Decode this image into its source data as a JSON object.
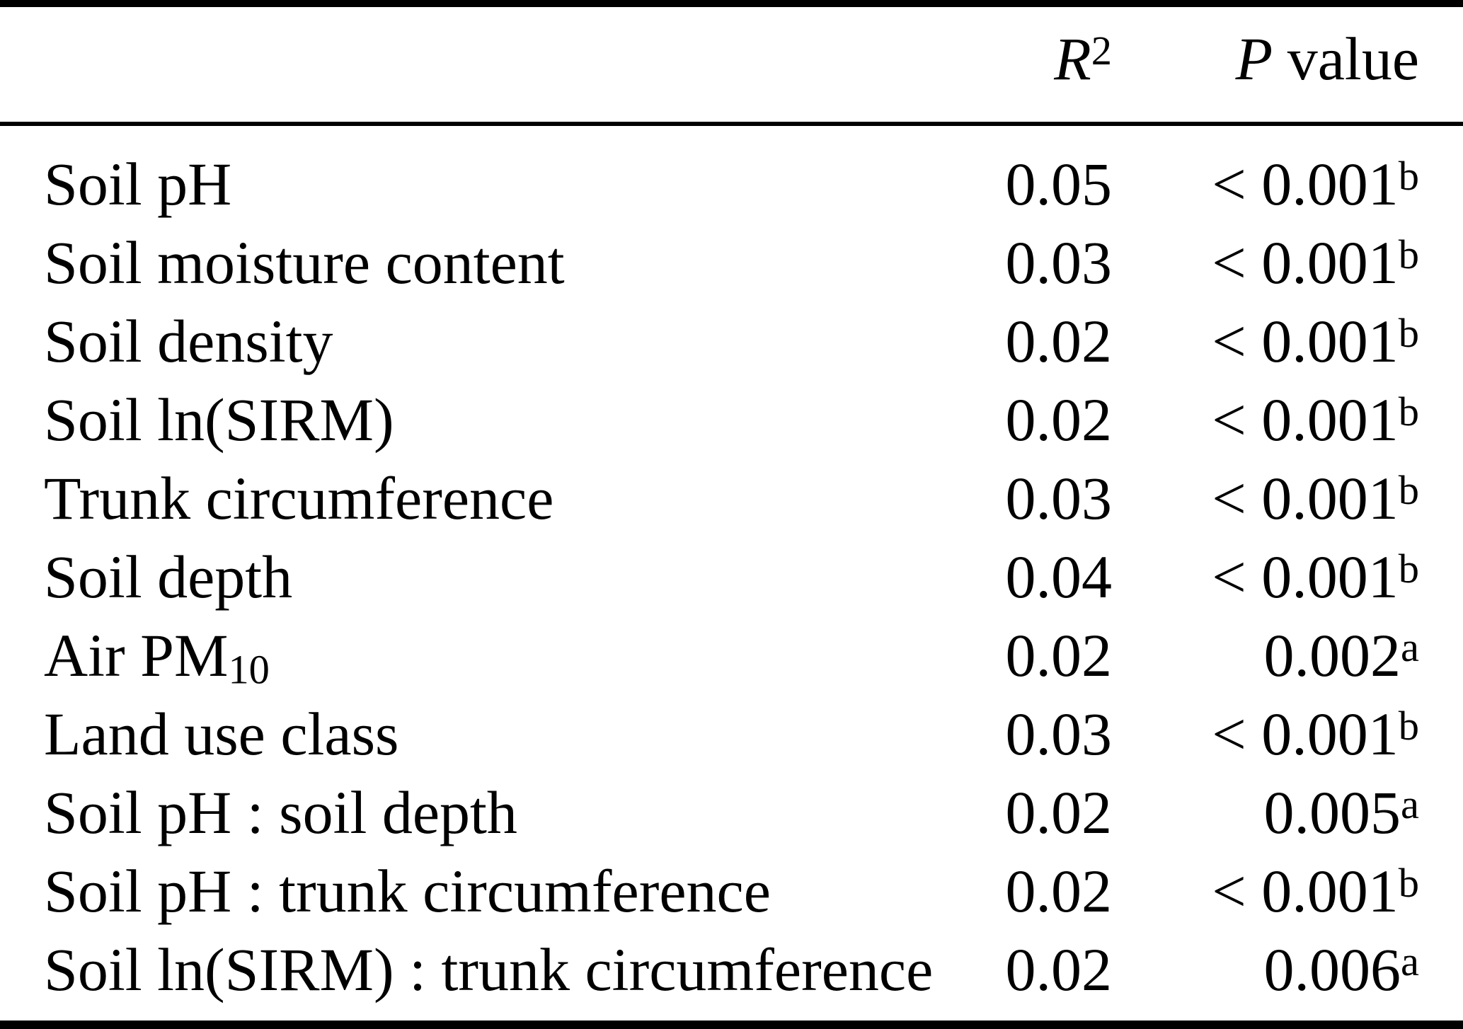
{
  "colors": {
    "text": "#000000",
    "background": "#ffffff",
    "rule": "#000000"
  },
  "table": {
    "header": {
      "variable_label": "",
      "r2_base": "R",
      "r2_sup": "2",
      "p_italic": "P",
      "p_rest": "value"
    },
    "rows": [
      {
        "label": "Soil pH",
        "r2": "0.05",
        "p": "< 0.001",
        "p_sup": "b"
      },
      {
        "label": "Soil moisture content",
        "r2": "0.03",
        "p": "< 0.001",
        "p_sup": "b"
      },
      {
        "label": "Soil density",
        "r2": "0.02",
        "p": "< 0.001",
        "p_sup": "b"
      },
      {
        "label": "Soil ln(SIRM)",
        "r2": "0.02",
        "p": "< 0.001",
        "p_sup": "b"
      },
      {
        "label": "Trunk circumference",
        "r2": "0.03",
        "p": "< 0.001",
        "p_sup": "b"
      },
      {
        "label": "Soil depth",
        "r2": "0.04",
        "p": "< 0.001",
        "p_sup": "b"
      },
      {
        "label": "Air PM",
        "label_sub": "10",
        "r2": "0.02",
        "p": "0.002",
        "p_sup": "a"
      },
      {
        "label": "Land use class",
        "r2": "0.03",
        "p": "< 0.001",
        "p_sup": "b"
      },
      {
        "label": "Soil pH : soil depth",
        "r2": "0.02",
        "p": "0.005",
        "p_sup": "a"
      },
      {
        "label": "Soil pH : trunk circumference",
        "r2": "0.02",
        "p": "< 0.001",
        "p_sup": "b"
      },
      {
        "label": "Soil ln(SIRM) : trunk circumference",
        "r2": "0.02",
        "p": "0.006",
        "p_sup": "a"
      }
    ]
  },
  "chart_data": {
    "type": "table",
    "columns": [
      "",
      "R2",
      "P value"
    ],
    "rows": [
      [
        "Soil pH",
        0.05,
        "< 0.001 (b)"
      ],
      [
        "Soil moisture content",
        0.03,
        "< 0.001 (b)"
      ],
      [
        "Soil density",
        0.02,
        "< 0.001 (b)"
      ],
      [
        "Soil ln(SIRM)",
        0.02,
        "< 0.001 (b)"
      ],
      [
        "Trunk circumference",
        0.03,
        "< 0.001 (b)"
      ],
      [
        "Soil depth",
        0.04,
        "< 0.001 (b)"
      ],
      [
        "Air PM10",
        0.02,
        "0.002 (a)"
      ],
      [
        "Land use class",
        0.03,
        "< 0.001 (b)"
      ],
      [
        "Soil pH : soil depth",
        0.02,
        "0.005 (a)"
      ],
      [
        "Soil pH : trunk circumference",
        0.02,
        "< 0.001 (b)"
      ],
      [
        "Soil ln(SIRM) : trunk circumference",
        0.02,
        "0.006 (a)"
      ]
    ]
  }
}
